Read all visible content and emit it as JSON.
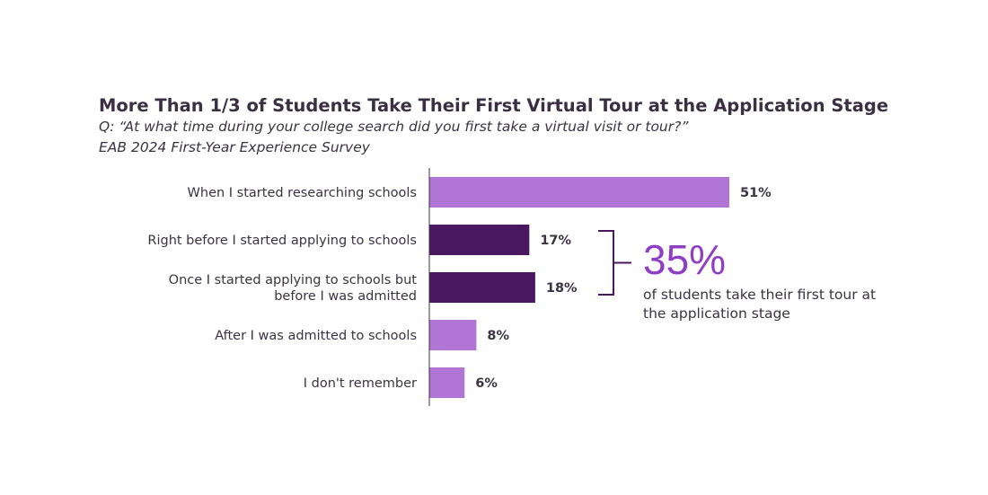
{
  "chart_data": {
    "type": "bar",
    "orientation": "horizontal",
    "title": "More Than 1/3 of Students Take Their First Virtual Tour at the Application Stage",
    "subtitle": "Q: “At what time during your college search did you first take a virtual visit or tour?”",
    "source": "EAB 2024 First-Year Experience Survey",
    "categories": [
      [
        "When I started researching schools"
      ],
      [
        "Right before I started applying to schools"
      ],
      [
        "Once I started applying to schools but",
        "before I was admitted"
      ],
      [
        "After I was admitted to schools"
      ],
      [
        "I don't remember"
      ]
    ],
    "values": [
      51,
      17,
      18,
      8,
      6
    ],
    "data_labels": [
      "51%",
      "17%",
      "18%",
      "8%",
      "6%"
    ],
    "unit": "%",
    "xlim": [
      0,
      100
    ],
    "grid": false,
    "highlighted": [
      false,
      true,
      true,
      false,
      false
    ],
    "colors": {
      "default": "#b175d6",
      "highlight": "#4a1860",
      "callout": "#8e3fc4"
    },
    "callout": {
      "value": "35%",
      "text": "of students take their first tour at the application stage",
      "brackets": [
        1,
        2
      ]
    }
  }
}
